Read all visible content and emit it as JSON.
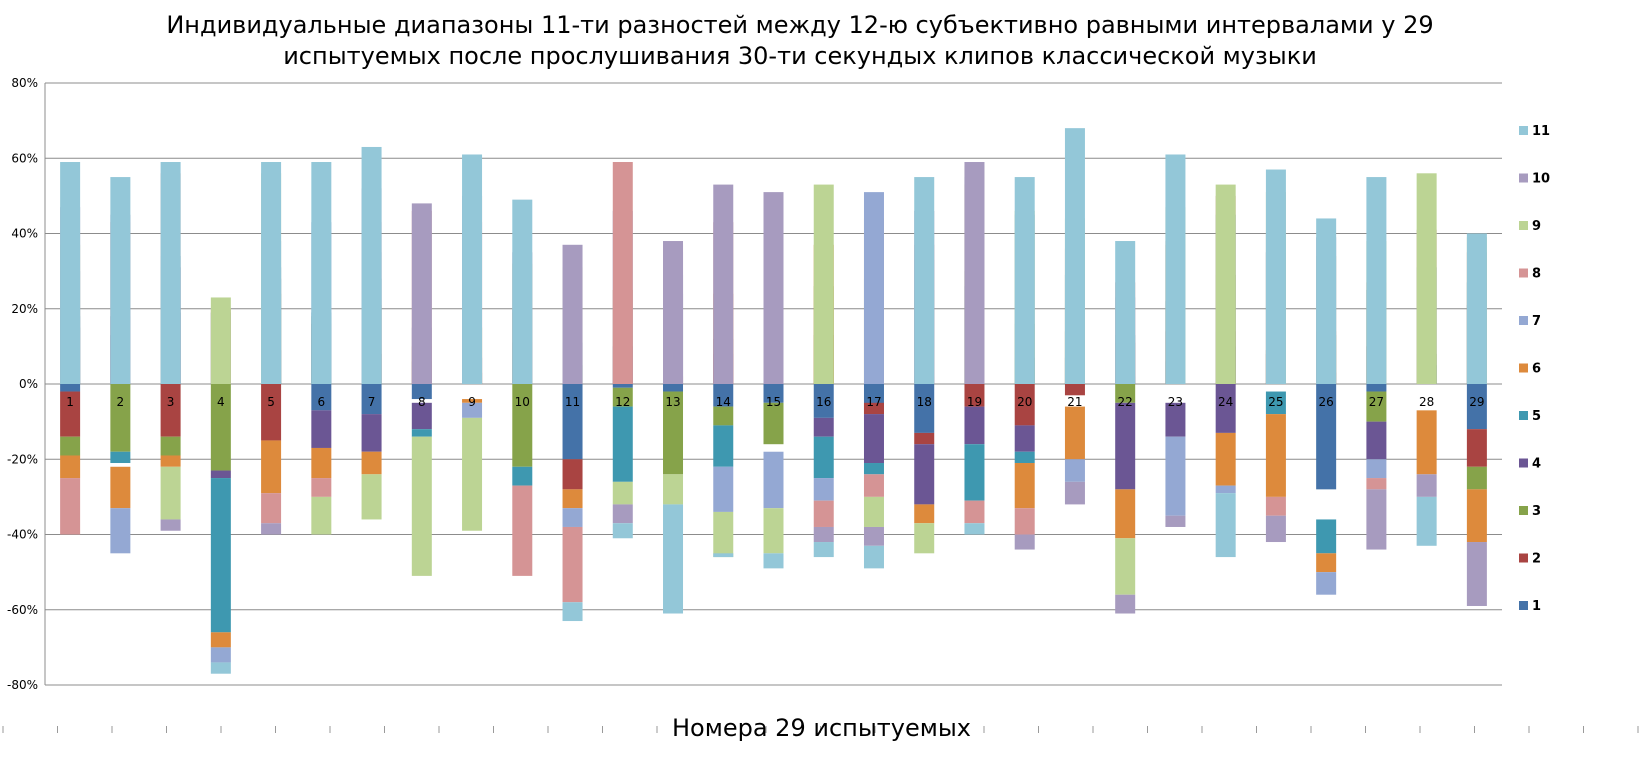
{
  "chart_data": {
    "type": "bar",
    "stacked": true,
    "title": "Индивидуальные диапазоны 11-ти разностей между 12-ю субъективно равными интервалами у 29 испытуемых после прослушивания 30-ти секундых клипов классической музыки",
    "title_lines": [
      "Индивидуальные диапазоны 11-ти разностей между 12-ю субъективно равными интервалами у 29",
      "испытуемых после прослушивания 30-ти секундых клипов классической музыки"
    ],
    "xlabel": "Номера 29 испытуемых",
    "ylabel": "",
    "ylim": [
      -80,
      80
    ],
    "yticks": [
      "80%",
      "60%",
      "40%",
      "20%",
      "0%",
      "-20%",
      "-40%",
      "-60%",
      "-80%"
    ],
    "grid": true,
    "legend_position": "right",
    "categories": [
      "1",
      "2",
      "3",
      "4",
      "5",
      "6",
      "7",
      "8",
      "9",
      "10",
      "11",
      "12",
      "13",
      "14",
      "15",
      "16",
      "17",
      "18",
      "19",
      "20",
      "21",
      "22",
      "23",
      "24",
      "25",
      "26",
      "27",
      "28",
      "29"
    ],
    "series": [
      {
        "name": "1",
        "color": "#4472A8",
        "values": [
          [
            -2,
            0
          ],
          [
            0,
            13
          ],
          [
            0,
            19
          ],
          [
            0,
            19
          ],
          [
            0,
            9
          ],
          [
            -7,
            0
          ],
          [
            -8,
            0
          ],
          [
            -4,
            0
          ],
          [
            0,
            7
          ],
          [
            0,
            0
          ],
          [
            -20,
            0
          ],
          [
            -1,
            0
          ],
          [
            -2,
            0
          ],
          [
            -6,
            0
          ],
          [
            -5,
            0
          ],
          [
            -9,
            0
          ],
          [
            -8,
            0
          ],
          [
            -13,
            0
          ],
          [
            0,
            26
          ],
          [
            0,
            7
          ],
          [
            0,
            7
          ],
          [
            0,
            2
          ],
          [
            0,
            6
          ],
          [
            0,
            10
          ],
          [
            0,
            0
          ],
          [
            -28,
            0
          ],
          [
            -2,
            0
          ],
          [
            0,
            5
          ],
          [
            -12,
            0
          ]
        ]
      },
      {
        "name": "2",
        "color": "#A94442",
        "values": [
          [
            -14,
            -2
          ],
          [
            0,
            0
          ],
          [
            -14,
            0
          ],
          [
            0,
            0
          ],
          [
            -15,
            0
          ],
          [
            0,
            16
          ],
          [
            0,
            8
          ],
          [
            0,
            0
          ],
          [
            0,
            3
          ],
          [
            0,
            11
          ],
          [
            -28,
            -20
          ],
          [
            0,
            0
          ],
          [
            0,
            2
          ],
          [
            0,
            8
          ],
          [
            0,
            9
          ],
          [
            0,
            13
          ],
          [
            -8,
            -5
          ],
          [
            -16,
            -13
          ],
          [
            -6,
            0
          ],
          [
            -11,
            0
          ],
          [
            -3,
            0
          ],
          [
            0,
            11
          ],
          [
            0,
            14
          ],
          [
            0,
            14
          ],
          [
            0,
            8
          ],
          [
            0,
            3
          ],
          [
            0,
            10
          ],
          [
            0,
            0
          ],
          [
            -22,
            -12
          ]
        ]
      },
      {
        "name": "3",
        "color": "#86A34A",
        "values": [
          [
            -19,
            -14
          ],
          [
            -18,
            0
          ],
          [
            -19,
            -14
          ],
          [
            -23,
            0
          ],
          [
            0,
            24
          ],
          [
            0,
            18
          ],
          [
            0,
            21
          ],
          [
            0,
            6
          ],
          [
            0,
            15
          ],
          [
            -22,
            0
          ],
          [
            0,
            5
          ],
          [
            -6,
            -1
          ],
          [
            -24,
            -2
          ],
          [
            -11,
            -6
          ],
          [
            -16,
            -5
          ],
          [
            0,
            26
          ],
          [
            0,
            28
          ],
          [
            0,
            2
          ],
          [
            0,
            30
          ],
          [
            0,
            16
          ],
          [
            0,
            14
          ],
          [
            -5,
            0
          ],
          [
            0,
            0
          ],
          [
            0,
            29
          ],
          [
            0,
            9
          ],
          [
            0,
            13
          ],
          [
            -10,
            -2
          ],
          [
            0,
            8
          ],
          [
            -28,
            -22
          ]
        ]
      },
      {
        "name": "4",
        "color": "#6B5694",
        "values": [
          [
            0,
            15
          ],
          [
            0,
            18
          ],
          [
            0,
            31
          ],
          [
            -25,
            -23
          ],
          [
            0,
            28
          ],
          [
            -17,
            -7
          ],
          [
            -18,
            -8
          ],
          [
            -12,
            -5
          ],
          [
            0,
            0
          ],
          [
            0,
            0
          ],
          [
            0,
            0
          ],
          [
            0,
            10
          ],
          [
            0,
            24
          ],
          [
            0,
            12
          ],
          [
            0,
            24
          ],
          [
            -14,
            -9
          ],
          [
            -21,
            -8
          ],
          [
            -32,
            -16
          ],
          [
            -16,
            -6
          ],
          [
            -18,
            -11
          ],
          [
            0,
            0
          ],
          [
            -28,
            -5
          ],
          [
            -14,
            -5
          ],
          [
            -13,
            0
          ],
          [
            0,
            35
          ],
          [
            0,
            0
          ],
          [
            -20,
            -10
          ],
          [
            0,
            0
          ],
          [
            0,
            21
          ]
        ]
      },
      {
        "name": "5",
        "color": "#3E98B0",
        "values": [
          [
            0,
            18
          ],
          [
            -21,
            -18
          ],
          [
            0,
            34
          ],
          [
            -66,
            -25
          ],
          [
            0,
            31
          ],
          [
            0,
            19
          ],
          [
            0,
            28
          ],
          [
            -14,
            -12
          ],
          [
            0,
            0
          ],
          [
            -27,
            -22
          ],
          [
            0,
            11
          ],
          [
            -26,
            -6
          ],
          [
            0,
            29
          ],
          [
            -22,
            -11
          ],
          [
            0,
            0
          ],
          [
            -25,
            -14
          ],
          [
            -24,
            -21
          ],
          [
            0,
            25
          ],
          [
            -31,
            -16
          ],
          [
            -21,
            -18
          ],
          [
            0,
            29
          ],
          [
            0,
            13
          ],
          [
            0,
            22
          ],
          [
            0,
            45
          ],
          [
            -8,
            -2
          ],
          [
            -45,
            -36
          ],
          [
            0,
            25
          ],
          [
            0,
            31
          ],
          [
            0,
            27
          ]
        ]
      },
      {
        "name": "6",
        "color": "#DD8A3C",
        "values": [
          [
            -25,
            -19
          ],
          [
            -33,
            -22
          ],
          [
            -22,
            -19
          ],
          [
            -70,
            -66
          ],
          [
            -29,
            -15
          ],
          [
            -25,
            -17
          ],
          [
            -24,
            -18
          ],
          [
            0,
            10
          ],
          [
            -5,
            -4
          ],
          [
            0,
            19
          ],
          [
            -33,
            -28
          ],
          [
            0,
            25
          ],
          [
            0,
            0
          ],
          [
            0,
            24
          ],
          [
            0,
            27
          ],
          [
            0,
            37
          ],
          [
            0,
            44
          ],
          [
            -37,
            -32
          ],
          [
            0,
            53
          ],
          [
            -33,
            -21
          ],
          [
            -20,
            -6
          ],
          [
            -41,
            -28
          ],
          [
            0,
            37
          ],
          [
            -27,
            -13
          ],
          [
            -30,
            -8
          ],
          [
            -50,
            -45
          ],
          [
            0,
            27
          ],
          [
            -24,
            -7
          ],
          [
            -42,
            -28
          ]
        ]
      },
      {
        "name": "7",
        "color": "#94A8D3",
        "values": [
          [
            0,
            30
          ],
          [
            -45,
            -33
          ],
          [
            0,
            0
          ],
          [
            -74,
            -70
          ],
          [
            0,
            38
          ],
          [
            0,
            43
          ],
          [
            0,
            35
          ],
          [
            0,
            15
          ],
          [
            -9,
            -5
          ],
          [
            0,
            20
          ],
          [
            -38,
            -33
          ],
          [
            0,
            46
          ],
          [
            0,
            35
          ],
          [
            -34,
            -22
          ],
          [
            -33,
            -18
          ],
          [
            -31,
            -25
          ],
          [
            0,
            51
          ],
          [
            0,
            33
          ],
          [
            0,
            55
          ],
          [
            0,
            45
          ],
          [
            -26,
            -20
          ],
          [
            0,
            23
          ],
          [
            -35,
            -14
          ],
          [
            -29,
            -27
          ],
          [
            0,
            40
          ],
          [
            -56,
            -50
          ],
          [
            -25,
            -20
          ],
          [
            0,
            0
          ],
          [
            0,
            0
          ]
        ]
      },
      {
        "name": "8",
        "color": "#D59495",
        "values": [
          [
            -40,
            -25
          ],
          [
            0,
            43
          ],
          [
            0,
            56
          ],
          [
            0,
            20
          ],
          [
            -37,
            -29
          ],
          [
            -30,
            -25
          ],
          [
            0,
            43
          ],
          [
            0,
            46
          ],
          [
            0,
            43
          ],
          [
            -51,
            -27
          ],
          [
            -58,
            -38
          ],
          [
            0,
            59
          ],
          [
            0,
            37
          ],
          [
            0,
            43
          ],
          [
            0,
            40
          ],
          [
            -38,
            -31
          ],
          [
            -30,
            -24
          ],
          [
            0,
            37
          ],
          [
            -37,
            -31
          ],
          [
            -40,
            -33
          ],
          [
            0,
            36
          ],
          [
            0,
            27
          ],
          [
            0,
            38
          ],
          [
            0,
            50
          ],
          [
            -35,
            -30
          ],
          [
            0,
            14
          ],
          [
            -28,
            -25
          ],
          [
            0,
            41
          ],
          [
            0,
            35
          ]
        ]
      },
      {
        "name": "9",
        "color": "#BCD494",
        "values": [
          [
            0,
            37
          ],
          [
            0,
            0
          ],
          [
            -36,
            -22
          ],
          [
            0,
            23
          ],
          [
            0,
            56
          ],
          [
            -40,
            -30
          ],
          [
            -36,
            -24
          ],
          [
            -51,
            -14
          ],
          [
            -39,
            -9
          ],
          [
            0,
            32
          ],
          [
            0,
            31
          ],
          [
            -32,
            -26
          ],
          [
            -32,
            -24
          ],
          [
            -46,
            -34
          ],
          [
            -45,
            -33
          ],
          [
            0,
            53
          ],
          [
            -38,
            -30
          ],
          [
            -45,
            -37
          ],
          [
            0,
            58
          ],
          [
            0,
            46
          ],
          [
            0,
            44
          ],
          [
            -56,
            -41
          ],
          [
            0,
            47
          ],
          [
            0,
            53
          ],
          [
            0,
            51
          ],
          [
            0,
            34
          ],
          [
            0,
            38
          ],
          [
            0,
            56
          ],
          [
            0,
            39
          ]
        ]
      },
      {
        "name": "10",
        "color": "#A79BBF",
        "values": [
          [
            0,
            47
          ],
          [
            0,
            45
          ],
          [
            -39,
            -36
          ],
          [
            0,
            0
          ],
          [
            -40,
            -37
          ],
          [
            0,
            0
          ],
          [
            0,
            52
          ],
          [
            0,
            48
          ],
          [
            0,
            50
          ],
          [
            0,
            35
          ],
          [
            0,
            37
          ],
          [
            -37,
            -32
          ],
          [
            0,
            38
          ],
          [
            0,
            53
          ],
          [
            0,
            51
          ],
          [
            -42,
            -38
          ],
          [
            -43,
            -38
          ],
          [
            0,
            46
          ],
          [
            0,
            59
          ],
          [
            -44,
            -40
          ],
          [
            -32,
            -26
          ],
          [
            -61,
            -56
          ],
          [
            -38,
            -35
          ],
          [
            0,
            0
          ],
          [
            -42,
            -35
          ],
          [
            0,
            39
          ],
          [
            -44,
            -28
          ],
          [
            -30,
            -24
          ],
          [
            -59,
            -42
          ]
        ]
      },
      {
        "name": "11",
        "color": "#93C7D8",
        "values": [
          [
            0,
            59
          ],
          [
            0,
            55
          ],
          [
            0,
            59
          ],
          [
            -77,
            -74
          ],
          [
            0,
            59
          ],
          [
            0,
            59
          ],
          [
            0,
            63
          ],
          [
            0,
            0
          ],
          [
            0,
            61
          ],
          [
            0,
            49
          ],
          [
            -63,
            -58
          ],
          [
            -41,
            -37
          ],
          [
            -61,
            -32
          ],
          [
            -46,
            -45
          ],
          [
            -49,
            -45
          ],
          [
            -46,
            -42
          ],
          [
            -49,
            -43
          ],
          [
            0,
            55
          ],
          [
            -40,
            -37
          ],
          [
            0,
            55
          ],
          [
            0,
            68
          ],
          [
            0,
            38
          ],
          [
            0,
            61
          ],
          [
            -46,
            -29
          ],
          [
            0,
            57
          ],
          [
            0,
            44
          ],
          [
            0,
            55
          ],
          [
            -43,
            -30
          ],
          [
            0,
            40
          ]
        ]
      }
    ]
  }
}
